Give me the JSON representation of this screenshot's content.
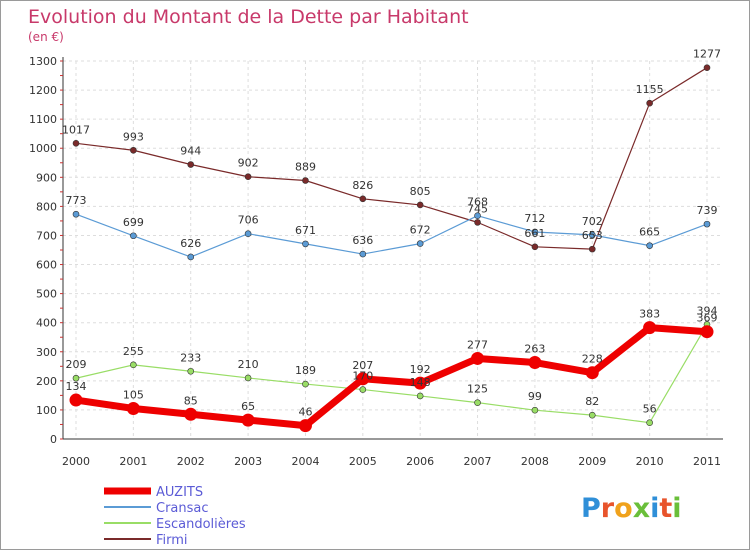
{
  "title": "Evolution du Montant de la Dette par Habitant",
  "subtitle": "(en €)",
  "logo_text": "Proxiti",
  "logo_colors": [
    "#2f8fd8",
    "#e8542c",
    "#f0a21c",
    "#6abf3a",
    "#2f8fd8",
    "#e8542c",
    "#6abf3a"
  ],
  "chart_data": {
    "type": "line",
    "categories": [
      "2000",
      "2001",
      "2002",
      "2003",
      "2004",
      "2005",
      "2006",
      "2007",
      "2008",
      "2009",
      "2010",
      "2011"
    ],
    "ylim": [
      0,
      1300
    ],
    "yticks": [
      0,
      100,
      200,
      300,
      400,
      500,
      600,
      700,
      800,
      900,
      1000,
      1100,
      1200,
      1300
    ],
    "grid": true,
    "legend_position": "bottom-left",
    "series": [
      {
        "name": "Firmi",
        "color": "#7a2a2a",
        "values": [
          1017,
          993,
          944,
          902,
          889,
          826,
          805,
          745,
          661,
          653,
          1155,
          1277
        ]
      },
      {
        "name": "Cransac",
        "color": "#5b9bd5",
        "values": [
          773,
          699,
          626,
          706,
          671,
          636,
          672,
          768,
          712,
          702,
          665,
          739
        ]
      },
      {
        "name": "Escandolières",
        "color": "#99dd66",
        "values": [
          209,
          255,
          233,
          210,
          189,
          170,
          148,
          125,
          99,
          82,
          56,
          394
        ]
      },
      {
        "name": "AUZITS",
        "color": "#ee0000",
        "values": [
          134,
          105,
          85,
          65,
          46,
          207,
          192,
          277,
          263,
          228,
          383,
          369
        ]
      }
    ],
    "legend_order": [
      "AUZITS",
      "Cransac",
      "Escandolières",
      "Firmi"
    ]
  }
}
